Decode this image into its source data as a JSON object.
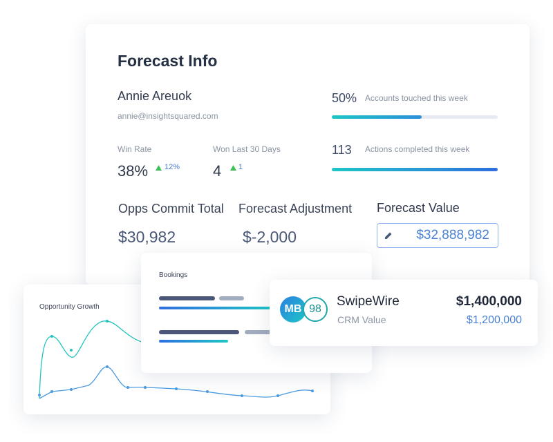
{
  "forecast_card": {
    "title": "Forecast Info",
    "user_name": "Annie Areuok",
    "user_email": "annie@insightsquared.com",
    "win_rate": {
      "label": "Win Rate",
      "value": "38%",
      "change": "12%"
    },
    "won_last_30": {
      "label": "Won Last 30 Days",
      "value": "4",
      "change": "1"
    },
    "progress": [
      {
        "value": "50%",
        "label": "Accounts touched this week"
      },
      {
        "value": "113",
        "label": "Actions completed this week"
      }
    ],
    "opps_commit": {
      "label": "Opps Commit Total",
      "value": "$30,982"
    },
    "forecast_adjustment": {
      "label": "Forecast Adjustment",
      "value": "$-2,000"
    },
    "forecast_value": {
      "label": "Forecast Value",
      "value": "$32,888,982"
    }
  },
  "opportunity_card": {
    "title": "Opportunity Growth"
  },
  "bookings_card": {
    "title": "Bookings"
  },
  "account_card": {
    "initials": "MB",
    "score": "98",
    "name": "SwipeWire",
    "subtitle": "CRM Value",
    "value": "$1,400,000",
    "crm_value": "$1,200,000"
  }
}
